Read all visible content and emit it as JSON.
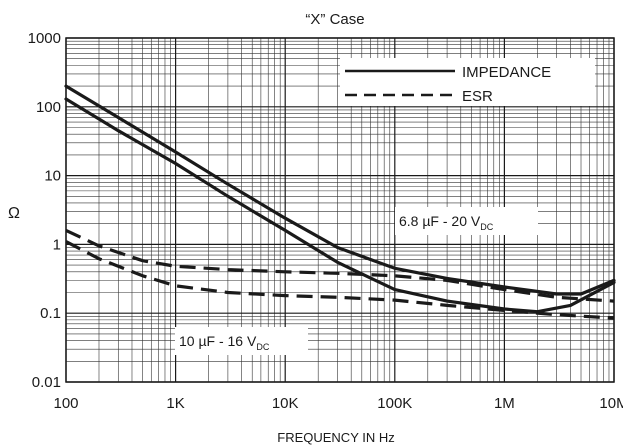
{
  "chart_data": {
    "type": "line",
    "title": "“X” Case",
    "xlabel": "FREQUENCY IN Hz",
    "ylabel": "Ω",
    "x_scale": "log",
    "y_scale": "log",
    "xlim": [
      100,
      10000000
    ],
    "ylim": [
      0.01,
      1000
    ],
    "x_ticks": [
      {
        "value": 100,
        "label": "100"
      },
      {
        "value": 1000,
        "label": "1K"
      },
      {
        "value": 10000,
        "label": "10K"
      },
      {
        "value": 100000,
        "label": "100K"
      },
      {
        "value": 1000000,
        "label": "1M"
      },
      {
        "value": 10000000,
        "label": "10M"
      }
    ],
    "y_ticks": [
      {
        "value": 0.01,
        "label": "0.01"
      },
      {
        "value": 0.1,
        "label": "0.1"
      },
      {
        "value": 1,
        "label": "1"
      },
      {
        "value": 10,
        "label": "10"
      },
      {
        "value": 100,
        "label": "100"
      },
      {
        "value": 1000,
        "label": "1000"
      }
    ],
    "grid": true,
    "legend": {
      "position": "top-right",
      "entries": [
        {
          "label": "IMPEDANCE",
          "style": "solid"
        },
        {
          "label": "ESR",
          "style": "dashed"
        }
      ]
    },
    "annotations": [
      {
        "id": "ann-6p8",
        "main": "6.8 µF - 20 V",
        "sub": "DC"
      },
      {
        "id": "ann-10",
        "main": "10 µF - 16 V",
        "sub": "DC"
      }
    ],
    "series": [
      {
        "group": "6.8 µF - 20 V",
        "kind": "IMPEDANCE",
        "style": "solid",
        "x": [
          100,
          300,
          1000,
          3000,
          10000,
          30000,
          100000,
          300000,
          1000000,
          3000000,
          5000000,
          10000000
        ],
        "y": [
          200,
          70,
          22,
          7.5,
          2.4,
          0.9,
          0.45,
          0.32,
          0.24,
          0.19,
          0.19,
          0.3
        ]
      },
      {
        "group": "10 µF - 16 V",
        "kind": "IMPEDANCE",
        "style": "solid",
        "x": [
          100,
          300,
          1000,
          3000,
          10000,
          30000,
          100000,
          300000,
          1000000,
          2000000,
          4000000,
          10000000
        ],
        "y": [
          130,
          45,
          15,
          5,
          1.6,
          0.55,
          0.22,
          0.15,
          0.115,
          0.105,
          0.13,
          0.28
        ]
      },
      {
        "group": "6.8 µF - 20 V",
        "kind": "ESR",
        "style": "dashed",
        "x": [
          100,
          200,
          500,
          1000,
          3000,
          10000,
          30000,
          100000,
          300000,
          1000000,
          3000000,
          10000000
        ],
        "y": [
          1.6,
          0.95,
          0.58,
          0.48,
          0.43,
          0.4,
          0.38,
          0.35,
          0.3,
          0.22,
          0.17,
          0.15
        ]
      },
      {
        "group": "10 µF - 16 V",
        "kind": "ESR",
        "style": "dashed",
        "x": [
          100,
          200,
          500,
          1000,
          3000,
          10000,
          30000,
          100000,
          300000,
          1000000,
          3000000,
          10000000
        ],
        "y": [
          1.1,
          0.62,
          0.35,
          0.25,
          0.2,
          0.18,
          0.17,
          0.155,
          0.13,
          0.11,
          0.095,
          0.085
        ]
      }
    ]
  }
}
